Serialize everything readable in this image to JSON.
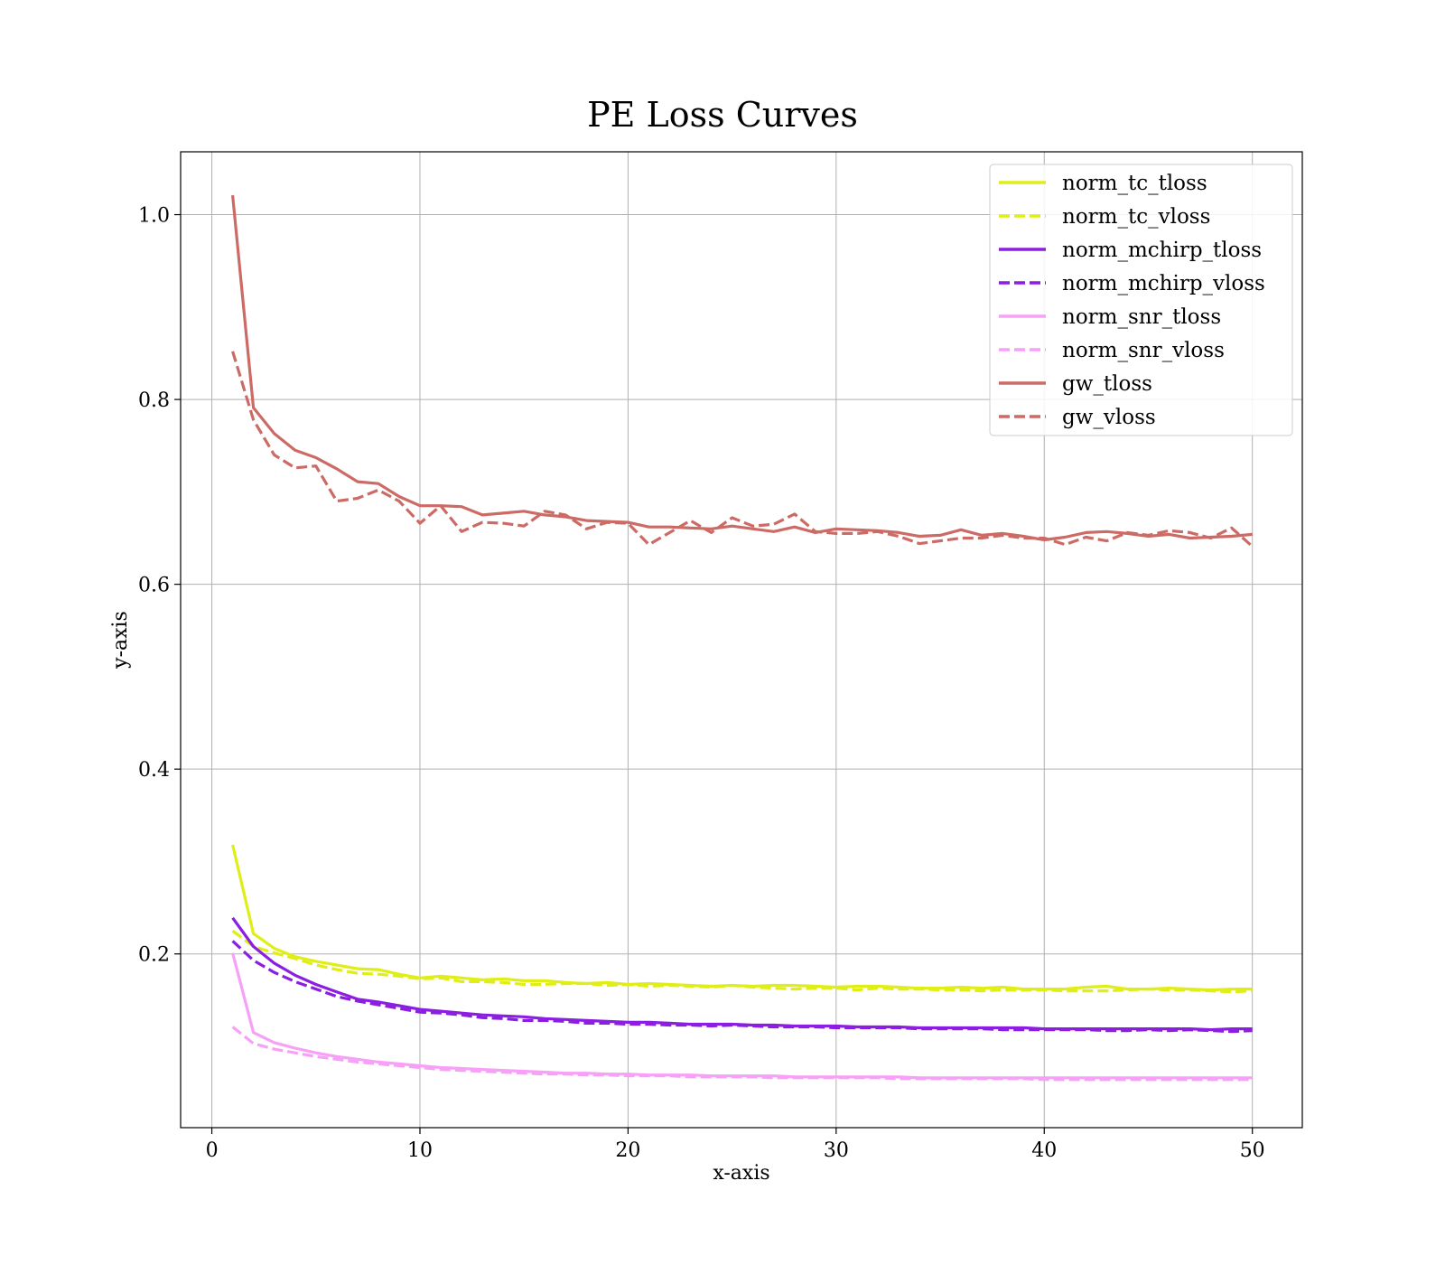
{
  "chart_data": {
    "type": "line",
    "title": "PE Loss Curves",
    "xlabel": "x-axis",
    "ylabel": "y-axis",
    "xlim": [
      -1.5,
      52.4
    ],
    "ylim": [
      0.012,
      1.068
    ],
    "xticks": [
      0,
      10,
      20,
      30,
      40,
      50
    ],
    "xtick_labels": [
      "0",
      "10",
      "20",
      "30",
      "40",
      "50"
    ],
    "yticks": [
      0.2,
      0.4,
      0.6,
      0.8,
      1.0
    ],
    "ytick_labels": [
      "0.2",
      "0.4",
      "0.6",
      "0.8",
      "1.0"
    ],
    "grid": true,
    "legend_position": "top-right",
    "x": [
      1,
      2,
      3,
      4,
      5,
      6,
      7,
      8,
      9,
      10,
      11,
      12,
      13,
      14,
      15,
      16,
      17,
      18,
      19,
      20,
      21,
      22,
      23,
      24,
      25,
      26,
      27,
      28,
      29,
      30,
      31,
      32,
      33,
      34,
      35,
      36,
      37,
      38,
      39,
      40,
      41,
      42,
      43,
      44,
      45,
      46,
      47,
      48,
      49,
      50
    ],
    "series": [
      {
        "name": "norm_tc_tloss",
        "color": "#e0ee17",
        "dash": "solid",
        "values": [
          0.318,
          0.222,
          0.206,
          0.197,
          0.192,
          0.188,
          0.184,
          0.183,
          0.178,
          0.174,
          0.176,
          0.174,
          0.172,
          0.173,
          0.171,
          0.171,
          0.169,
          0.168,
          0.169,
          0.167,
          0.168,
          0.167,
          0.166,
          0.165,
          0.166,
          0.165,
          0.166,
          0.166,
          0.165,
          0.164,
          0.165,
          0.165,
          0.164,
          0.163,
          0.163,
          0.164,
          0.163,
          0.164,
          0.162,
          0.162,
          0.162,
          0.164,
          0.165,
          0.162,
          0.162,
          0.163,
          0.162,
          0.161,
          0.162,
          0.162
        ]
      },
      {
        "name": "norm_tc_vloss",
        "color": "#e0ee17",
        "dash": "dashed",
        "values": [
          0.225,
          0.208,
          0.201,
          0.195,
          0.188,
          0.183,
          0.179,
          0.178,
          0.176,
          0.173,
          0.174,
          0.17,
          0.17,
          0.169,
          0.167,
          0.167,
          0.168,
          0.168,
          0.166,
          0.167,
          0.165,
          0.166,
          0.165,
          0.164,
          0.166,
          0.164,
          0.163,
          0.162,
          0.163,
          0.163,
          0.161,
          0.163,
          0.162,
          0.162,
          0.161,
          0.161,
          0.16,
          0.161,
          0.161,
          0.161,
          0.16,
          0.16,
          0.16,
          0.161,
          0.162,
          0.161,
          0.161,
          0.16,
          0.159,
          0.16
        ]
      },
      {
        "name": "norm_mchirp_tloss",
        "color": "#8b1ee0",
        "dash": "solid",
        "values": [
          0.239,
          0.208,
          0.19,
          0.177,
          0.167,
          0.159,
          0.151,
          0.148,
          0.144,
          0.14,
          0.138,
          0.136,
          0.134,
          0.133,
          0.132,
          0.13,
          0.129,
          0.128,
          0.127,
          0.126,
          0.126,
          0.125,
          0.124,
          0.124,
          0.124,
          0.123,
          0.123,
          0.122,
          0.122,
          0.122,
          0.121,
          0.121,
          0.121,
          0.12,
          0.12,
          0.12,
          0.12,
          0.12,
          0.12,
          0.119,
          0.119,
          0.119,
          0.119,
          0.119,
          0.119,
          0.119,
          0.119,
          0.118,
          0.119,
          0.119
        ]
      },
      {
        "name": "norm_mchirp_vloss",
        "color": "#8b1ee0",
        "dash": "dashed",
        "values": [
          0.214,
          0.193,
          0.18,
          0.17,
          0.162,
          0.154,
          0.149,
          0.145,
          0.141,
          0.137,
          0.136,
          0.134,
          0.131,
          0.13,
          0.128,
          0.128,
          0.127,
          0.125,
          0.125,
          0.124,
          0.124,
          0.123,
          0.123,
          0.122,
          0.123,
          0.122,
          0.121,
          0.121,
          0.121,
          0.12,
          0.12,
          0.12,
          0.12,
          0.119,
          0.119,
          0.119,
          0.119,
          0.118,
          0.118,
          0.118,
          0.118,
          0.118,
          0.117,
          0.117,
          0.118,
          0.117,
          0.118,
          0.117,
          0.116,
          0.117
        ]
      },
      {
        "name": "norm_snr_tloss",
        "color": "#f7a0f7",
        "dash": "solid",
        "values": [
          0.201,
          0.115,
          0.104,
          0.098,
          0.093,
          0.089,
          0.086,
          0.083,
          0.081,
          0.079,
          0.077,
          0.076,
          0.075,
          0.074,
          0.073,
          0.072,
          0.071,
          0.071,
          0.07,
          0.07,
          0.069,
          0.069,
          0.069,
          0.068,
          0.068,
          0.068,
          0.068,
          0.067,
          0.067,
          0.067,
          0.067,
          0.067,
          0.067,
          0.066,
          0.066,
          0.066,
          0.066,
          0.066,
          0.066,
          0.066,
          0.066,
          0.066,
          0.066,
          0.066,
          0.066,
          0.066,
          0.066,
          0.066,
          0.066,
          0.066
        ]
      },
      {
        "name": "norm_snr_vloss",
        "color": "#f7a0f7",
        "dash": "dashed",
        "values": [
          0.121,
          0.103,
          0.097,
          0.093,
          0.089,
          0.086,
          0.083,
          0.081,
          0.079,
          0.077,
          0.075,
          0.074,
          0.073,
          0.072,
          0.071,
          0.07,
          0.07,
          0.069,
          0.069,
          0.068,
          0.068,
          0.068,
          0.067,
          0.067,
          0.067,
          0.067,
          0.066,
          0.066,
          0.066,
          0.066,
          0.066,
          0.066,
          0.065,
          0.065,
          0.065,
          0.065,
          0.065,
          0.065,
          0.065,
          0.064,
          0.064,
          0.064,
          0.064,
          0.064,
          0.064,
          0.064,
          0.064,
          0.064,
          0.064,
          0.064
        ]
      },
      {
        "name": "gw_tloss",
        "color": "#cc6b66",
        "dash": "solid",
        "values": [
          1.021,
          0.791,
          0.763,
          0.745,
          0.737,
          0.725,
          0.711,
          0.709,
          0.695,
          0.685,
          0.685,
          0.684,
          0.675,
          0.677,
          0.679,
          0.675,
          0.673,
          0.669,
          0.668,
          0.667,
          0.662,
          0.662,
          0.661,
          0.66,
          0.663,
          0.66,
          0.657,
          0.662,
          0.656,
          0.66,
          0.659,
          0.658,
          0.656,
          0.652,
          0.653,
          0.659,
          0.653,
          0.655,
          0.652,
          0.648,
          0.651,
          0.656,
          0.657,
          0.655,
          0.652,
          0.654,
          0.65,
          0.651,
          0.652,
          0.654
        ]
      },
      {
        "name": "gw_vloss",
        "color": "#cc6b66",
        "dash": "dashed",
        "values": [
          0.852,
          0.778,
          0.74,
          0.726,
          0.728,
          0.69,
          0.693,
          0.702,
          0.69,
          0.666,
          0.685,
          0.657,
          0.667,
          0.666,
          0.663,
          0.679,
          0.675,
          0.66,
          0.667,
          0.666,
          0.643,
          0.656,
          0.669,
          0.656,
          0.672,
          0.663,
          0.665,
          0.676,
          0.657,
          0.655,
          0.655,
          0.657,
          0.652,
          0.644,
          0.647,
          0.65,
          0.65,
          0.653,
          0.65,
          0.65,
          0.643,
          0.651,
          0.647,
          0.656,
          0.653,
          0.658,
          0.656,
          0.65,
          0.661,
          0.641
        ]
      }
    ]
  }
}
